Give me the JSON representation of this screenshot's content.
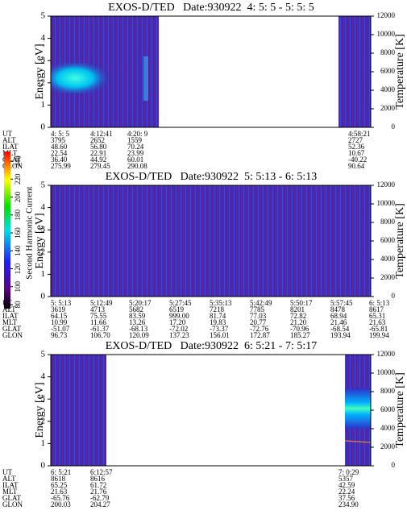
{
  "chart_data": [
    {
      "type": "spectrogram",
      "title": "EXOS-D/TED   Date:930922  4: 5: 5 - 5: 5: 5",
      "ylabel": "Energy [eV]",
      "y2label": "Temperature [K]",
      "ylim": [
        0,
        5
      ],
      "yticks": [
        0,
        1,
        2,
        3,
        4,
        5
      ],
      "y2lim": [
        0,
        12000
      ],
      "y2ticks": [
        0,
        2000,
        4000,
        6000,
        8000,
        10000,
        12000
      ],
      "ephemeris": {
        "row_labels": [
          "UT",
          "ALT",
          "ILAT",
          "MLT",
          "GLAT",
          "GLON"
        ],
        "rows": [
          [
            "4: 5: 5",
            "4:12:41",
            "4:20: 9",
            "4:58:21"
          ],
          [
            "3795",
            "2652",
            "1559",
            "2727"
          ],
          [
            "48.60",
            "56.80",
            "70.24",
            "52.36"
          ],
          [
            "22.54",
            "22.91",
            "23.99",
            "10.67"
          ],
          [
            "36.40",
            "44.92",
            "60.01",
            "-40.22"
          ],
          [
            "275.99",
            "279.45",
            "290.08",
            "90.64"
          ]
        ]
      }
    },
    {
      "type": "spectrogram",
      "title": "EXOS-D/TED   Date:930922  5: 5:13 - 6: 5:13",
      "ylabel": "Energy [eV]",
      "y2label": "Temperature [K]",
      "ylim": [
        0,
        5
      ],
      "yticks": [
        0,
        1,
        2,
        3,
        4,
        5
      ],
      "y2lim": [
        0,
        12000
      ],
      "y2ticks": [
        0,
        2000,
        4000,
        6000,
        8000,
        10000,
        12000
      ],
      "ephemeris": {
        "row_labels": [
          "UT",
          "ALT",
          "ILAT",
          "MLT",
          "GLAT",
          "GLON"
        ],
        "rows": [
          [
            "5: 5:13",
            "5:12:49",
            "5:20:17",
            "5:27:45",
            "5:35:13",
            "5:42:49",
            "5:50:17",
            "5:57:45",
            "6: 5:13"
          ],
          [
            "3619",
            "4713",
            "5682",
            "6519",
            "7218",
            "7785",
            "8201",
            "8478",
            "8617"
          ],
          [
            "64.15",
            "75.55",
            "83.59",
            "999.00",
            "81.74",
            "77.03",
            "72.82",
            "68.94",
            "65.31"
          ],
          [
            "10.99",
            "11.66",
            "13.26",
            "17.20",
            "19.83",
            "20.77",
            "21.20",
            "21.46",
            "21.63"
          ],
          [
            "-51.07",
            "-61.37",
            "-68.13",
            "-72.02",
            "-73.37",
            "-72.76",
            "-70.96",
            "-68.54",
            "-65.81"
          ],
          [
            "96.73",
            "106.70",
            "120.09",
            "137.23",
            "156.01",
            "172.87",
            "185.27",
            "193.94",
            "199.94"
          ]
        ]
      }
    },
    {
      "type": "spectrogram",
      "title": "EXOS-D/TED   Date:930922  6: 5:21 - 7: 5:17",
      "ylabel": "Energy [eV]",
      "y2label": "Temperature [K]",
      "ylim": [
        0,
        5
      ],
      "yticks": [
        0,
        1,
        2,
        3,
        4,
        5
      ],
      "y2lim": [
        0,
        12000
      ],
      "y2ticks": [
        0,
        2000,
        4000,
        6000,
        8000,
        10000,
        12000
      ],
      "ephemeris": {
        "row_labels": [
          "UT",
          "ALT",
          "ILAT",
          "MLT",
          "GLAT",
          "GLON"
        ],
        "rows": [
          [
            "6: 5:21",
            "6:12:57",
            "7: 0:29"
          ],
          [
            "8618",
            "8616",
            "5357"
          ],
          [
            "65.25",
            "61.72",
            "42.59"
          ],
          [
            "21.63",
            "21.76",
            "22.24"
          ],
          [
            "-65.76",
            "-62.79",
            "37.56"
          ],
          [
            "200.03",
            "204.27",
            "234.90"
          ]
        ]
      }
    }
  ],
  "colorbar": {
    "label": "Second Harmonic Current",
    "lim": [
      80,
      240
    ],
    "ticks": [
      80,
      100,
      120,
      140,
      160,
      180,
      200,
      220,
      240
    ]
  }
}
